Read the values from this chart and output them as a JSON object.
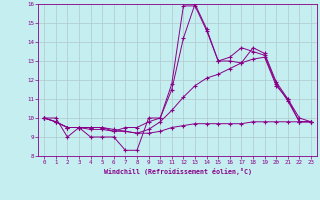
{
  "xlabel": "Windchill (Refroidissement éolien,°C)",
  "xlim": [
    -0.5,
    23.5
  ],
  "ylim": [
    8,
    16
  ],
  "yticks": [
    8,
    9,
    10,
    11,
    12,
    13,
    14,
    15,
    16
  ],
  "xticks": [
    0,
    1,
    2,
    3,
    4,
    5,
    6,
    7,
    8,
    9,
    10,
    11,
    12,
    13,
    14,
    15,
    16,
    17,
    18,
    19,
    20,
    21,
    22,
    23
  ],
  "background_color": "#c5eef0",
  "grid_color": "#b0c8cc",
  "line_color": "#880088",
  "series": [
    {
      "x": [
        0,
        1,
        2,
        3,
        4,
        5,
        6,
        7,
        8,
        9,
        10,
        11,
        12,
        13,
        14,
        15,
        16,
        17,
        18,
        19,
        20,
        21,
        22,
        23
      ],
      "y": [
        10.0,
        10.0,
        9.0,
        9.5,
        9.0,
        9.0,
        9.0,
        8.3,
        8.3,
        10.0,
        10.0,
        11.8,
        15.9,
        15.9,
        14.6,
        13.0,
        13.0,
        12.9,
        13.7,
        13.4,
        11.9,
        11.0,
        9.8,
        9.8
      ]
    },
    {
      "x": [
        0,
        1,
        2,
        3,
        4,
        5,
        6,
        7,
        8,
        9,
        10,
        11,
        12,
        13,
        14,
        15,
        16,
        17,
        18,
        19,
        20,
        21,
        22,
        23
      ],
      "y": [
        10.0,
        9.8,
        9.5,
        9.5,
        9.5,
        9.5,
        9.3,
        9.5,
        9.5,
        9.8,
        10.0,
        11.5,
        14.2,
        16.0,
        14.7,
        13.0,
        13.2,
        13.7,
        13.5,
        13.3,
        11.8,
        10.9,
        9.8,
        9.8
      ]
    },
    {
      "x": [
        0,
        1,
        2,
        3,
        4,
        5,
        6,
        7,
        8,
        9,
        10,
        11,
        12,
        13,
        14,
        15,
        16,
        17,
        18,
        19,
        20,
        21,
        22,
        23
      ],
      "y": [
        10.0,
        9.8,
        9.5,
        9.5,
        9.5,
        9.5,
        9.4,
        9.3,
        9.2,
        9.4,
        9.8,
        10.4,
        11.1,
        11.7,
        12.1,
        12.3,
        12.6,
        12.9,
        13.1,
        13.2,
        11.7,
        11.0,
        10.0,
        9.8
      ]
    },
    {
      "x": [
        0,
        1,
        2,
        3,
        4,
        5,
        6,
        7,
        8,
        9,
        10,
        11,
        12,
        13,
        14,
        15,
        16,
        17,
        18,
        19,
        20,
        21,
        22,
        23
      ],
      "y": [
        10.0,
        9.8,
        9.5,
        9.5,
        9.4,
        9.4,
        9.3,
        9.3,
        9.2,
        9.2,
        9.3,
        9.5,
        9.6,
        9.7,
        9.7,
        9.7,
        9.7,
        9.7,
        9.8,
        9.8,
        9.8,
        9.8,
        9.8,
        9.8
      ]
    }
  ]
}
